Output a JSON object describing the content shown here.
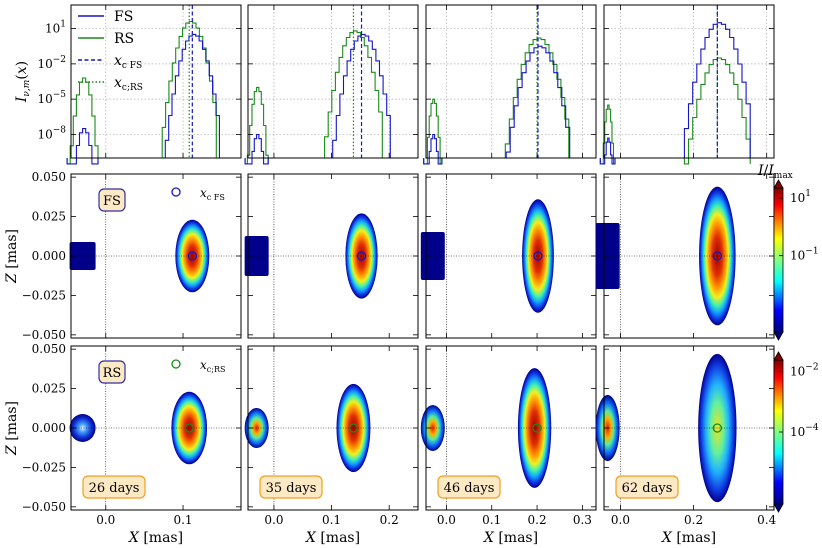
{
  "chart_data": {
    "type": "composite",
    "description_panels": "4 epochs: light-curve (log) row, FS image row, RS image row",
    "epochs": [
      {
        "label": "26 days",
        "xticks": [
          0.0,
          0.1
        ],
        "xlim": [
          -0.045,
          0.175
        ],
        "x_fs": 0.112,
        "x_rs": 0.108
      },
      {
        "label": "35 days",
        "xticks": [
          0.0,
          0.1,
          0.2
        ],
        "xlim": [
          -0.045,
          0.25
        ],
        "x_fs": 0.152,
        "x_rs": 0.138
      },
      {
        "label": "46 days",
        "xticks": [
          0.0,
          0.1,
          0.2,
          0.3
        ],
        "xlim": [
          -0.045,
          0.33
        ],
        "x_fs": 0.202,
        "x_rs": 0.2
      },
      {
        "label": "62 days",
        "xticks": [
          0.0,
          0.2,
          0.4
        ],
        "xlim": [
          -0.045,
          0.42
        ],
        "x_fs": 0.265,
        "x_rs": 0.265
      }
    ],
    "top_row": {
      "ylabel": "I_{ν,m}(x)",
      "yscale": "log",
      "ylim_log10": [
        -10,
        3
      ],
      "yticks": [
        "10^1",
        "10^-2",
        "10^-5",
        "10^-8"
      ],
      "legend": [
        "FS",
        "RS",
        "x_c FS",
        "x_c;RS"
      ],
      "fs_peak_log10": [
        0.5,
        0.5,
        -0.5,
        1.5
      ],
      "rs_peak_log10": [
        1.6,
        0.8,
        0.2,
        -1.5
      ],
      "counter_fs_peak_log10": [
        -7.5,
        -8.0,
        -8.0,
        -8.3
      ],
      "counter_rs_peak_log10": [
        -3.2,
        -4.0,
        -5.0,
        -5.5
      ]
    },
    "image_rows": {
      "xlabel": "X [mas]",
      "ylabel": "Z [mas]",
      "ylim": [
        -0.052,
        0.052
      ],
      "yticks": [
        0.05,
        0.025,
        0.0,
        -0.025,
        -0.05
      ],
      "fs_label": "FS",
      "rs_label": "RS",
      "marker_fs": "x_c FS",
      "marker_rs": "x_c;RS",
      "fs_main_half_height": [
        0.023,
        0.027,
        0.036,
        0.044
      ],
      "rs_main_half_height": [
        0.023,
        0.028,
        0.038,
        0.047
      ],
      "counter_x": [
        -0.03,
        -0.03,
        -0.03,
        -0.035
      ],
      "colorbar_fs": {
        "label": "I/I_max",
        "ticks": [
          "10^1",
          "10^-1"
        ]
      },
      "colorbar_rs": {
        "ticks": [
          "10^-2",
          "10^-4"
        ]
      }
    }
  },
  "texts": {
    "xlabel": "X [mas]",
    "ylabel_z": "Z [mas]",
    "cbar_label": "I/I_max",
    "fs_box": "FS",
    "rs_box": "RS",
    "xc_fs": "x_c FS",
    "xc_rs": "x_c;RS",
    "legend_fs": "FS",
    "legend_rs": "RS",
    "legend_xcfs": "x_c FS",
    "legend_xcrs": "x_c;RS",
    "days": [
      "26 days",
      "35 days",
      "46 days",
      "62 days"
    ]
  },
  "colors": {
    "fs": "#1515c8",
    "rs": "#1a8a1a",
    "box_fill": "#fde9c4",
    "box_edge": "#f0a020"
  }
}
